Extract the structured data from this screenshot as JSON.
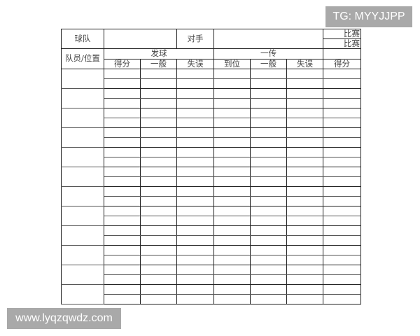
{
  "header": {
    "team_label": "球队",
    "opponent_label": "对手",
    "match_labels": [
      "比赛",
      "比赛"
    ],
    "player_position_label": "队员/位置",
    "serve_label": "发球",
    "reception_label": "一传"
  },
  "columns": [
    "得分",
    "一般",
    "失误",
    "到位",
    "一般",
    "失误",
    "得分"
  ],
  "player_row_count": 12,
  "watermarks": {
    "top": "TG: MYYJJPP",
    "bottom": "www.lyqzqwdz.com"
  }
}
